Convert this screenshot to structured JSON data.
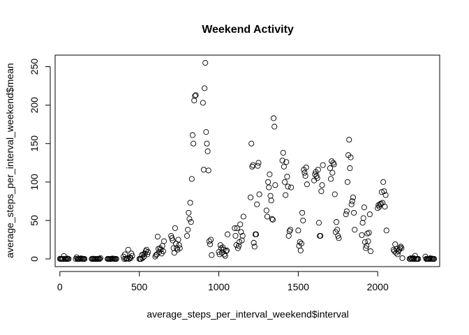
{
  "chart_data": {
    "type": "scatter",
    "title": "Weekend Activity",
    "xlabel": "average_steps_per_interval_weekend$interval",
    "ylabel": "average_steps_per_interval_weekend$mean",
    "xlim": [
      -30,
      2390
    ],
    "ylim": [
      -10,
      265
    ],
    "x_ticks": [
      0,
      500,
      1000,
      1500,
      2000
    ],
    "y_ticks": [
      0,
      50,
      100,
      150,
      200,
      250
    ],
    "grid": false,
    "marker": "open-circle",
    "color": "#000000",
    "points": [
      [
        0,
        0.2
      ],
      [
        5,
        0
      ],
      [
        10,
        0
      ],
      [
        15,
        0
      ],
      [
        20,
        0
      ],
      [
        25,
        3.7
      ],
      [
        30,
        0
      ],
      [
        35,
        0
      ],
      [
        40,
        0
      ],
      [
        45,
        0.5
      ],
      [
        50,
        0
      ],
      [
        55,
        0.1
      ],
      [
        100,
        0
      ],
      [
        105,
        2.1
      ],
      [
        110,
        0
      ],
      [
        115,
        0
      ],
      [
        120,
        0
      ],
      [
        125,
        0
      ],
      [
        130,
        0.6
      ],
      [
        135,
        0.6
      ],
      [
        140,
        0
      ],
      [
        145,
        0.2
      ],
      [
        150,
        0
      ],
      [
        155,
        0
      ],
      [
        200,
        0
      ],
      [
        205,
        0
      ],
      [
        210,
        0.3
      ],
      [
        215,
        0
      ],
      [
        220,
        0
      ],
      [
        225,
        0
      ],
      [
        230,
        0
      ],
      [
        235,
        0
      ],
      [
        240,
        0
      ],
      [
        245,
        0
      ],
      [
        250,
        0
      ],
      [
        255,
        1.1
      ],
      [
        300,
        0
      ],
      [
        305,
        0
      ],
      [
        310,
        0
      ],
      [
        315,
        0
      ],
      [
        320,
        0
      ],
      [
        325,
        0
      ],
      [
        330,
        0.5
      ],
      [
        335,
        0.5
      ],
      [
        340,
        0.1
      ],
      [
        345,
        0
      ],
      [
        350,
        0
      ],
      [
        355,
        0
      ],
      [
        400,
        3
      ],
      [
        405,
        0
      ],
      [
        410,
        6
      ],
      [
        415,
        0
      ],
      [
        420,
        0.4
      ],
      [
        425,
        0.7
      ],
      [
        430,
        12
      ],
      [
        435,
        0
      ],
      [
        440,
        2
      ],
      [
        445,
        1
      ],
      [
        450,
        7
      ],
      [
        455,
        4
      ],
      [
        500,
        0
      ],
      [
        505,
        0
      ],
      [
        510,
        0
      ],
      [
        515,
        5
      ],
      [
        520,
        1
      ],
      [
        525,
        6
      ],
      [
        530,
        3
      ],
      [
        535,
        7
      ],
      [
        540,
        10
      ],
      [
        545,
        12
      ],
      [
        550,
        6
      ],
      [
        555,
        9
      ],
      [
        600,
        3
      ],
      [
        605,
        5
      ],
      [
        610,
        6
      ],
      [
        615,
        29
      ],
      [
        620,
        13
      ],
      [
        625,
        9
      ],
      [
        630,
        14
      ],
      [
        635,
        12
      ],
      [
        640,
        7
      ],
      [
        645,
        17
      ],
      [
        650,
        10
      ],
      [
        655,
        23
      ],
      [
        700,
        30
      ],
      [
        705,
        27
      ],
      [
        710,
        24
      ],
      [
        715,
        14
      ],
      [
        720,
        8
      ],
      [
        725,
        40
      ],
      [
        730,
        20
      ],
      [
        735,
        14
      ],
      [
        740,
        12
      ],
      [
        745,
        25
      ],
      [
        750,
        18
      ],
      [
        755,
        14
      ],
      [
        800,
        30
      ],
      [
        805,
        38
      ],
      [
        810,
        60
      ],
      [
        815,
        52
      ],
      [
        820,
        73
      ],
      [
        825,
        48
      ],
      [
        830,
        104
      ],
      [
        835,
        161
      ],
      [
        840,
        150
      ],
      [
        845,
        206
      ],
      [
        850,
        212
      ],
      [
        855,
        213
      ],
      [
        900,
        203
      ],
      [
        905,
        116
      ],
      [
        910,
        222
      ],
      [
        915,
        255
      ],
      [
        920,
        165
      ],
      [
        925,
        150
      ],
      [
        930,
        140
      ],
      [
        935,
        115
      ],
      [
        940,
        23
      ],
      [
        945,
        19
      ],
      [
        950,
        25
      ],
      [
        955,
        5
      ],
      [
        1000,
        9
      ],
      [
        1005,
        6
      ],
      [
        1010,
        18
      ],
      [
        1015,
        14
      ],
      [
        1020,
        8
      ],
      [
        1025,
        15
      ],
      [
        1030,
        12
      ],
      [
        1035,
        6
      ],
      [
        1040,
        4
      ],
      [
        1045,
        10
      ],
      [
        1050,
        11
      ],
      [
        1055,
        32
      ],
      [
        1100,
        40
      ],
      [
        1105,
        30
      ],
      [
        1110,
        18
      ],
      [
        1115,
        40
      ],
      [
        1120,
        14
      ],
      [
        1125,
        17
      ],
      [
        1130,
        22
      ],
      [
        1135,
        45
      ],
      [
        1140,
        35
      ],
      [
        1145,
        24
      ],
      [
        1150,
        30
      ],
      [
        1155,
        55
      ],
      [
        1200,
        80
      ],
      [
        1205,
        150
      ],
      [
        1210,
        120
      ],
      [
        1215,
        122
      ],
      [
        1220,
        21
      ],
      [
        1225,
        16
      ],
      [
        1230,
        32
      ],
      [
        1235,
        32
      ],
      [
        1240,
        71
      ],
      [
        1245,
        121
      ],
      [
        1250,
        125
      ],
      [
        1255,
        84
      ],
      [
        1300,
        63
      ],
      [
        1305,
        55
      ],
      [
        1310,
        100
      ],
      [
        1315,
        93
      ],
      [
        1320,
        110
      ],
      [
        1325,
        82
      ],
      [
        1330,
        76
      ],
      [
        1335,
        52
      ],
      [
        1340,
        51
      ],
      [
        1345,
        183
      ],
      [
        1350,
        172
      ],
      [
        1355,
        96
      ],
      [
        1400,
        128
      ],
      [
        1405,
        138
      ],
      [
        1410,
        120
      ],
      [
        1415,
        100
      ],
      [
        1420,
        83
      ],
      [
        1425,
        126
      ],
      [
        1430,
        107
      ],
      [
        1435,
        94
      ],
      [
        1440,
        30
      ],
      [
        1445,
        36
      ],
      [
        1450,
        38
      ],
      [
        1455,
        93
      ],
      [
        1500,
        37
      ],
      [
        1505,
        17
      ],
      [
        1510,
        22
      ],
      [
        1515,
        11
      ],
      [
        1520,
        20
      ],
      [
        1525,
        60
      ],
      [
        1530,
        50
      ],
      [
        1535,
        116
      ],
      [
        1540,
        112
      ],
      [
        1545,
        108
      ],
      [
        1550,
        119
      ],
      [
        1555,
        97
      ],
      [
        1600,
        102
      ],
      [
        1605,
        110
      ],
      [
        1610,
        113
      ],
      [
        1615,
        108
      ],
      [
        1620,
        105
      ],
      [
        1625,
        116
      ],
      [
        1630,
        47
      ],
      [
        1635,
        30
      ],
      [
        1640,
        30
      ],
      [
        1645,
        88
      ],
      [
        1650,
        96
      ],
      [
        1655,
        122
      ],
      [
        1700,
        118
      ],
      [
        1705,
        104
      ],
      [
        1710,
        127
      ],
      [
        1715,
        112
      ],
      [
        1720,
        125
      ],
      [
        1725,
        123
      ],
      [
        1730,
        84
      ],
      [
        1735,
        35
      ],
      [
        1740,
        48
      ],
      [
        1745,
        38
      ],
      [
        1750,
        30
      ],
      [
        1755,
        27
      ],
      [
        1800,
        58
      ],
      [
        1805,
        62
      ],
      [
        1810,
        100
      ],
      [
        1815,
        135
      ],
      [
        1820,
        155
      ],
      [
        1825,
        118
      ],
      [
        1830,
        132
      ],
      [
        1835,
        71
      ],
      [
        1840,
        75
      ],
      [
        1845,
        80
      ],
      [
        1850,
        60
      ],
      [
        1855,
        38
      ],
      [
        1900,
        31
      ],
      [
        1905,
        47
      ],
      [
        1910,
        53
      ],
      [
        1915,
        67
      ],
      [
        1920,
        22
      ],
      [
        1925,
        14
      ],
      [
        1930,
        17
      ],
      [
        1935,
        33
      ],
      [
        1940,
        23
      ],
      [
        1945,
        34
      ],
      [
        1950,
        58
      ],
      [
        1955,
        10
      ],
      [
        2000,
        66
      ],
      [
        2005,
        70
      ],
      [
        2010,
        68
      ],
      [
        2015,
        71
      ],
      [
        2020,
        72
      ],
      [
        2025,
        87
      ],
      [
        2030,
        73
      ],
      [
        2035,
        100
      ],
      [
        2040,
        88
      ],
      [
        2045,
        68
      ],
      [
        2050,
        83
      ],
      [
        2055,
        37
      ],
      [
        2100,
        12
      ],
      [
        2105,
        10
      ],
      [
        2110,
        19
      ],
      [
        2115,
        8
      ],
      [
        2120,
        13
      ],
      [
        2125,
        6
      ],
      [
        2130,
        10
      ],
      [
        2135,
        12
      ],
      [
        2140,
        14
      ],
      [
        2145,
        16
      ],
      [
        2150,
        14
      ],
      [
        2155,
        1
      ],
      [
        2200,
        0
      ],
      [
        2205,
        0
      ],
      [
        2210,
        1
      ],
      [
        2215,
        0
      ],
      [
        2220,
        0
      ],
      [
        2225,
        1
      ],
      [
        2230,
        0
      ],
      [
        2235,
        4
      ],
      [
        2240,
        0
      ],
      [
        2245,
        0
      ],
      [
        2250,
        0
      ],
      [
        2255,
        0
      ],
      [
        2300,
        3
      ],
      [
        2305,
        0
      ],
      [
        2310,
        0
      ],
      [
        2315,
        0
      ],
      [
        2320,
        0
      ],
      [
        2325,
        0
      ],
      [
        2330,
        0.8
      ],
      [
        2335,
        0
      ],
      [
        2340,
        0.5
      ],
      [
        2345,
        0
      ],
      [
        2350,
        0
      ],
      [
        2355,
        0
      ]
    ]
  }
}
